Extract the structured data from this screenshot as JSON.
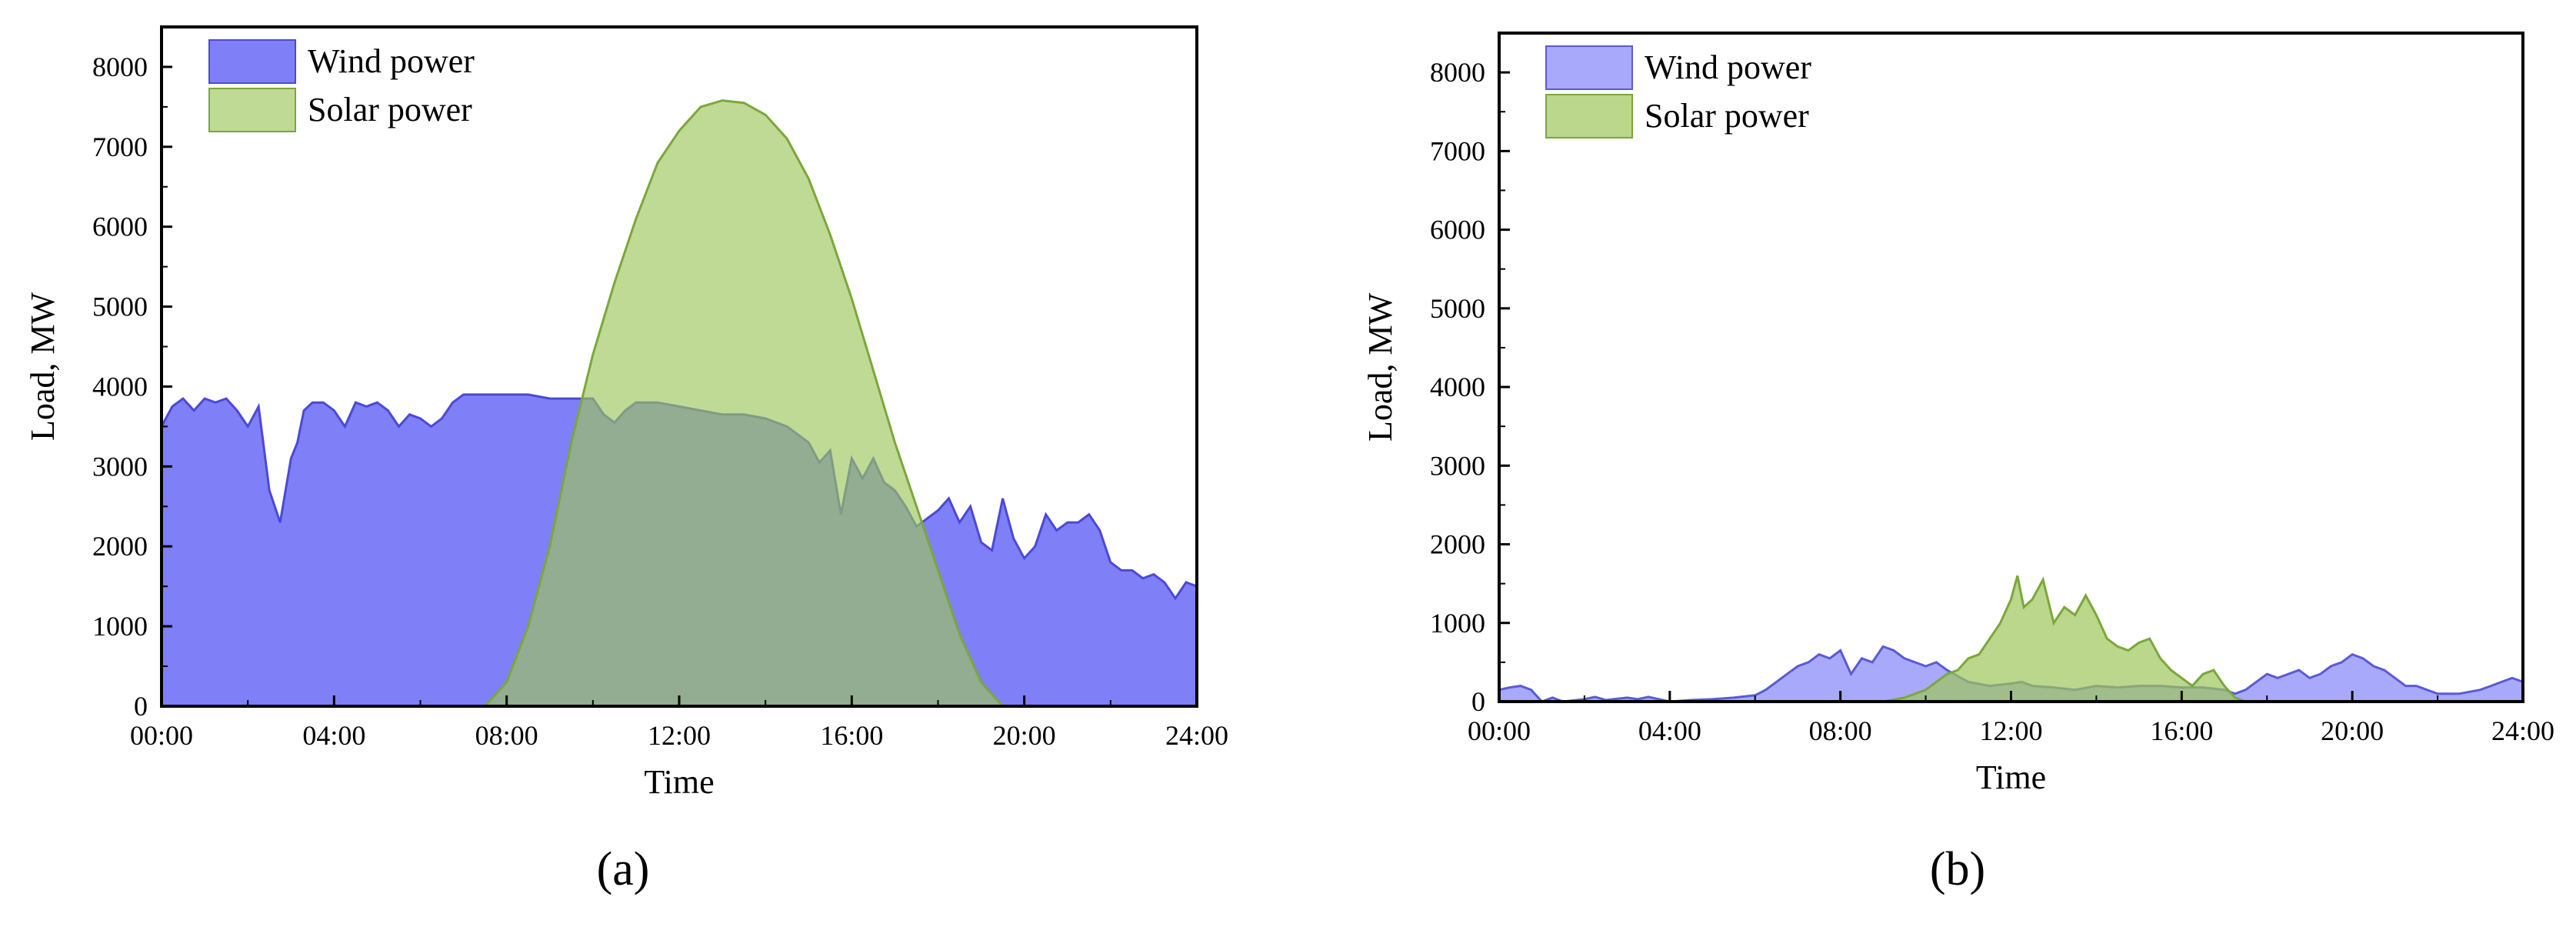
{
  "chart_data": [
    {
      "type": "area",
      "panel_label": "(a)",
      "xlabel": "Time",
      "ylabel": "Load, MW",
      "xlim": [
        0,
        24
      ],
      "ylim": [
        0,
        8500
      ],
      "x_ticks": [
        0,
        4,
        8,
        12,
        16,
        20,
        24
      ],
      "x_tick_labels": [
        "00:00",
        "04:00",
        "08:00",
        "12:00",
        "16:00",
        "20:00",
        "24:00"
      ],
      "y_ticks": [
        0,
        1000,
        2000,
        3000,
        4000,
        5000,
        6000,
        7000,
        8000
      ],
      "y_tick_labels": [
        "0",
        "1000",
        "2000",
        "3000",
        "4000",
        "5000",
        "6000",
        "7000",
        "8000"
      ],
      "legend_position": "top-left",
      "series": [
        {
          "name": "Wind power",
          "fill": "#7f7ff7",
          "stroke": "#4a4ad6",
          "x": [
            0,
            0.25,
            0.5,
            0.75,
            1,
            1.25,
            1.5,
            1.75,
            2,
            2.25,
            2.5,
            2.75,
            3,
            3.15,
            3.3,
            3.5,
            3.75,
            4,
            4.25,
            4.5,
            4.75,
            5,
            5.25,
            5.5,
            5.75,
            6,
            6.25,
            6.5,
            6.75,
            7,
            7.5,
            8,
            8.5,
            9,
            9.5,
            10,
            10.25,
            10.5,
            10.75,
            11,
            11.5,
            12,
            12.5,
            13,
            13.5,
            14,
            14.5,
            15,
            15.25,
            15.5,
            15.75,
            16,
            16.25,
            16.5,
            16.75,
            17,
            17.25,
            17.5,
            18,
            18.25,
            18.5,
            18.75,
            19,
            19.25,
            19.5,
            19.75,
            20,
            20.25,
            20.5,
            20.75,
            21,
            21.25,
            21.5,
            21.75,
            22,
            22.25,
            22.5,
            22.75,
            23,
            23.25,
            23.5,
            23.75,
            24
          ],
          "values": [
            3500,
            3750,
            3850,
            3700,
            3850,
            3800,
            3850,
            3700,
            3500,
            3750,
            2700,
            2300,
            3100,
            3300,
            3700,
            3800,
            3800,
            3700,
            3500,
            3800,
            3750,
            3800,
            3700,
            3500,
            3650,
            3600,
            3500,
            3600,
            3800,
            3900,
            3900,
            3900,
            3900,
            3850,
            3850,
            3850,
            3650,
            3550,
            3700,
            3800,
            3800,
            3750,
            3700,
            3650,
            3650,
            3600,
            3500,
            3300,
            3050,
            3200,
            2400,
            3100,
            2850,
            3100,
            2800,
            2700,
            2500,
            2250,
            2450,
            2600,
            2300,
            2500,
            2050,
            1950,
            2600,
            2100,
            1850,
            2000,
            2400,
            2200,
            2300,
            2300,
            2400,
            2200,
            1800,
            1700,
            1700,
            1600,
            1650,
            1550,
            1350,
            1550,
            1500
          ]
        },
        {
          "name": "Solar power",
          "fill": "#9cc65a",
          "stroke": "#7aa83a",
          "x": [
            0,
            7.5,
            8,
            8.5,
            9,
            9.5,
            10,
            10.5,
            11,
            11.5,
            12,
            12.5,
            13,
            13.5,
            14,
            14.5,
            15,
            15.5,
            16,
            16.5,
            17,
            17.5,
            18,
            18.5,
            19,
            19.5,
            24
          ],
          "values": [
            0,
            0,
            300,
            1000,
            2000,
            3300,
            4400,
            5300,
            6100,
            6800,
            7200,
            7500,
            7580,
            7550,
            7400,
            7100,
            6600,
            5900,
            5100,
            4200,
            3300,
            2500,
            1700,
            900,
            300,
            0,
            0
          ]
        }
      ]
    },
    {
      "type": "area",
      "panel_label": "(b)",
      "xlabel": "Time",
      "ylabel": "Load, MW",
      "xlim": [
        0,
        24
      ],
      "ylim": [
        0,
        8500
      ],
      "x_ticks": [
        0,
        4,
        8,
        12,
        16,
        20,
        24
      ],
      "x_tick_labels": [
        "00:00",
        "04:00",
        "08:00",
        "12:00",
        "16:00",
        "20:00",
        "24:00"
      ],
      "y_ticks": [
        0,
        1000,
        2000,
        3000,
        4000,
        5000,
        6000,
        7000,
        8000
      ],
      "y_tick_labels": [
        "0",
        "1000",
        "2000",
        "3000",
        "4000",
        "5000",
        "6000",
        "7000",
        "8000"
      ],
      "legend_position": "top-left",
      "series": [
        {
          "name": "Wind power",
          "fill": "#a9a9fb",
          "stroke": "#5a5ad8",
          "x": [
            0,
            0.25,
            0.5,
            0.75,
            1,
            1.25,
            1.5,
            2,
            2.25,
            2.5,
            3,
            3.25,
            3.5,
            4,
            4.5,
            5,
            5.5,
            6,
            6.25,
            6.5,
            6.75,
            7,
            7.25,
            7.5,
            7.75,
            8,
            8.25,
            8.5,
            8.75,
            9,
            9.25,
            9.5,
            9.75,
            10,
            10.25,
            10.5,
            11,
            11.5,
            12,
            12.25,
            12.5,
            13,
            13.5,
            14,
            14.5,
            15,
            15.5,
            16,
            16.5,
            17,
            17.25,
            17.5,
            17.75,
            18,
            18.25,
            18.5,
            18.75,
            19,
            19.25,
            19.5,
            19.75,
            20,
            20.25,
            20.5,
            20.75,
            21,
            21.25,
            21.5,
            21.75,
            22,
            22.5,
            23,
            23.25,
            23.5,
            23.75,
            24
          ],
          "values": [
            150,
            180,
            200,
            150,
            0,
            50,
            0,
            30,
            60,
            20,
            50,
            30,
            60,
            0,
            20,
            30,
            50,
            80,
            150,
            250,
            350,
            450,
            500,
            600,
            550,
            650,
            350,
            550,
            500,
            700,
            650,
            550,
            500,
            450,
            500,
            400,
            250,
            200,
            230,
            250,
            200,
            180,
            150,
            200,
            180,
            200,
            200,
            180,
            180,
            150,
            100,
            150,
            250,
            350,
            300,
            350,
            400,
            300,
            350,
            450,
            500,
            600,
            550,
            450,
            400,
            300,
            200,
            200,
            150,
            100,
            100,
            150,
            200,
            250,
            300,
            250
          ]
        },
        {
          "name": "Solar power",
          "fill": "#9cc65a",
          "stroke": "#7aa83a",
          "x": [
            0,
            9,
            9.5,
            10,
            10.25,
            10.5,
            10.75,
            11,
            11.25,
            11.5,
            11.75,
            12,
            12.15,
            12.3,
            12.5,
            12.75,
            13,
            13.25,
            13.5,
            13.75,
            14,
            14.25,
            14.5,
            14.75,
            15,
            15.25,
            15.5,
            15.75,
            16,
            16.25,
            16.5,
            16.75,
            17,
            17.25,
            17.5,
            24
          ],
          "values": [
            0,
            0,
            50,
            150,
            250,
            350,
            400,
            550,
            600,
            800,
            1000,
            1300,
            1600,
            1200,
            1300,
            1550,
            1000,
            1200,
            1100,
            1350,
            1100,
            800,
            700,
            650,
            750,
            800,
            550,
            400,
            300,
            200,
            350,
            400,
            200,
            50,
            0,
            0
          ]
        }
      ]
    }
  ]
}
